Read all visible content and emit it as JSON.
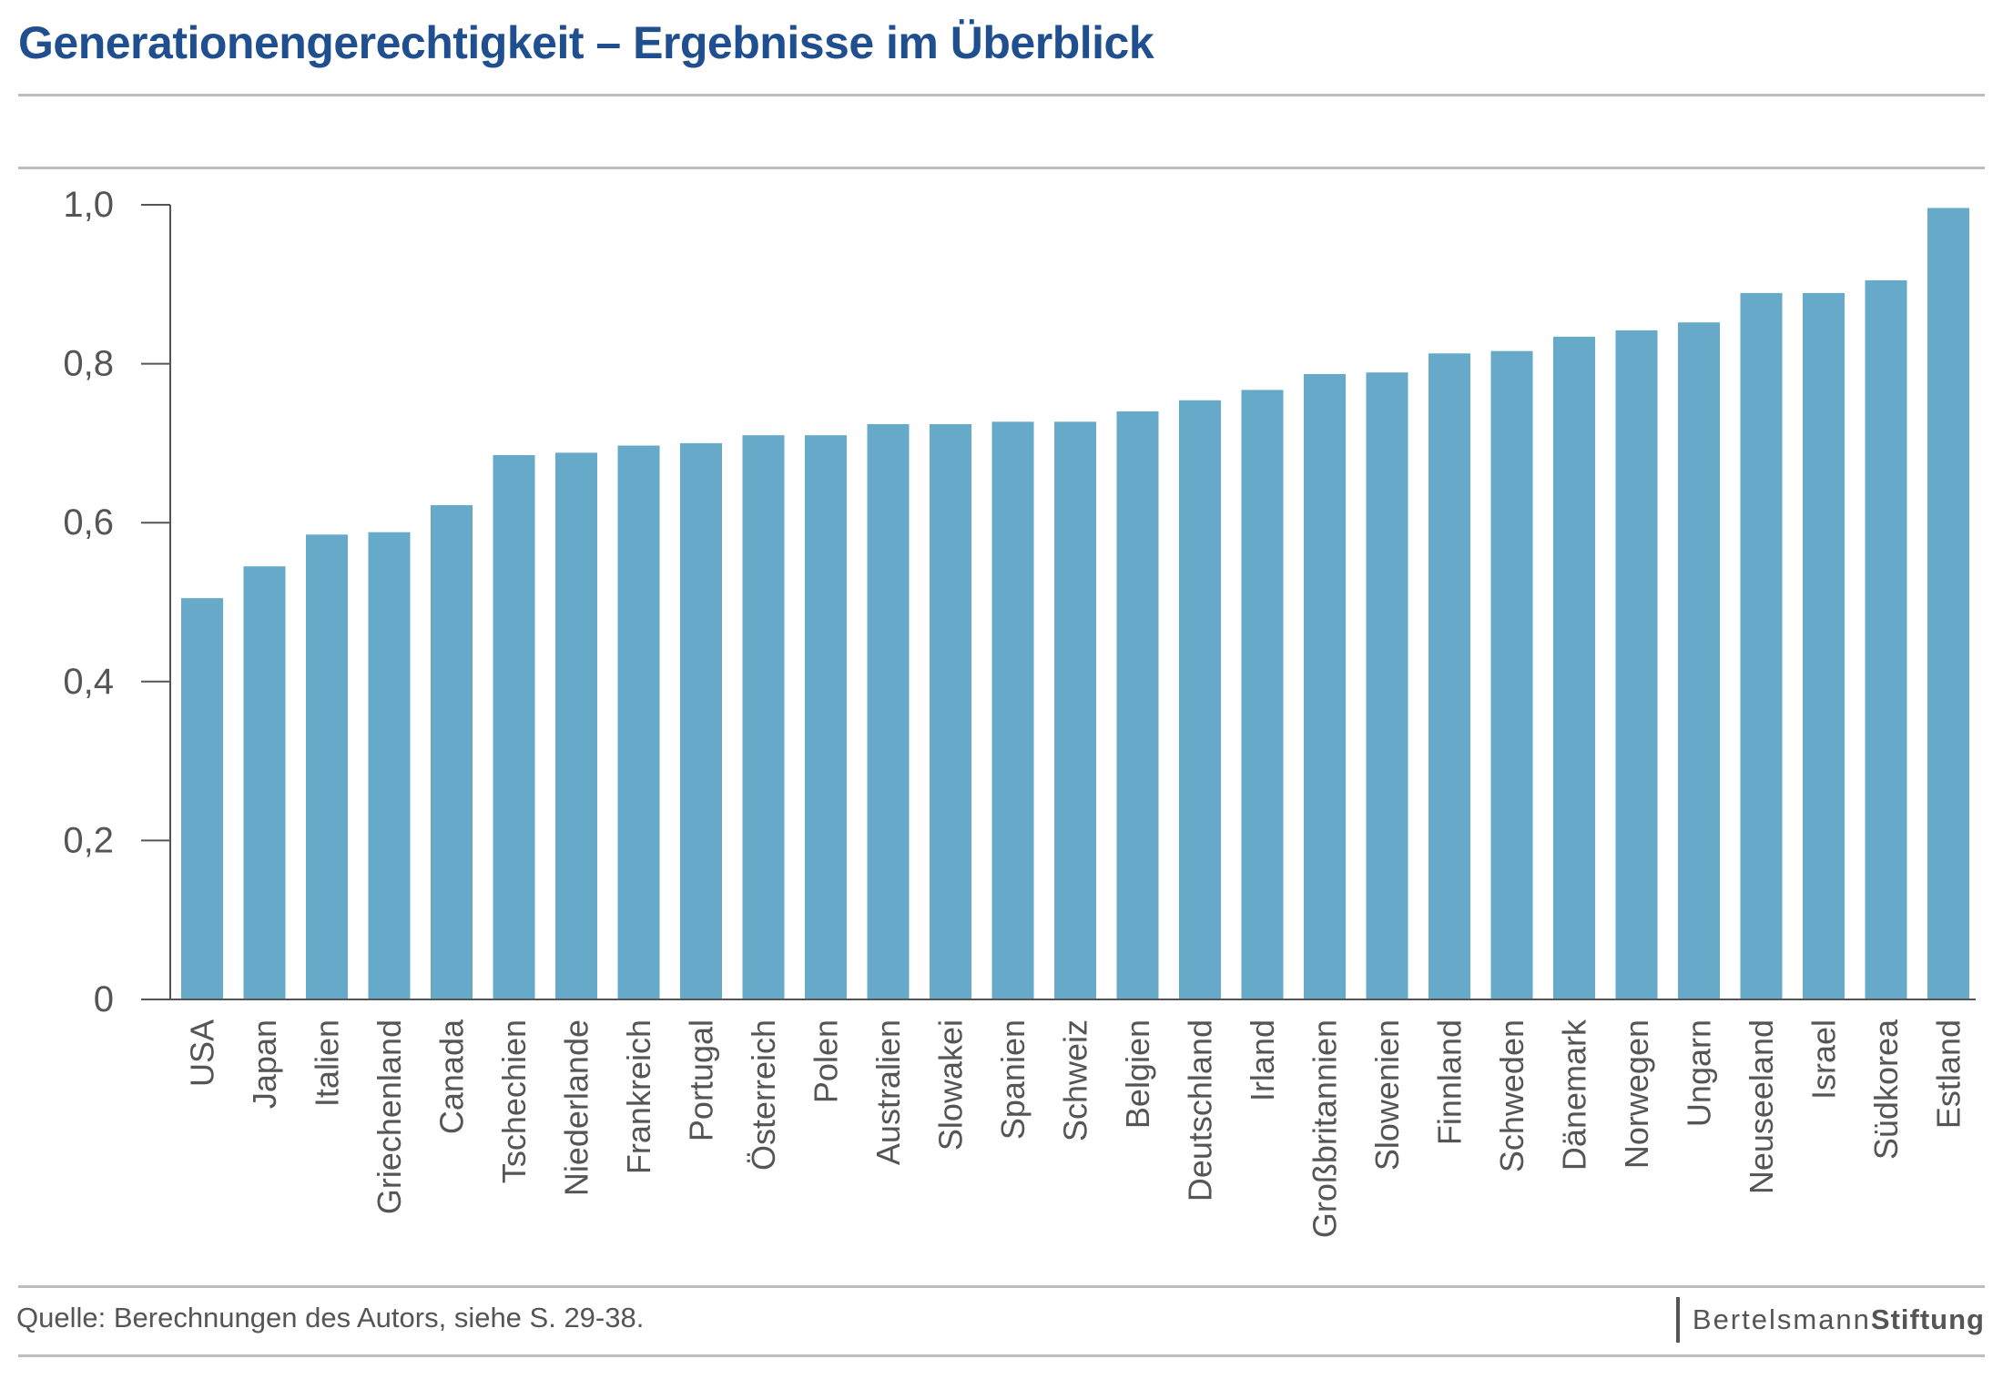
{
  "header": {
    "title": "Generationengerechtigkeit – Ergebnisse im Überblick"
  },
  "footer": {
    "source": "Quelle: Berechnungen des Autors, siehe S. 29-38.",
    "brand_light": "Bertelsmann",
    "brand_strong": "Stiftung"
  },
  "colors": {
    "bar": "#66a9c8",
    "title": "#1f4f8f",
    "axis": "#555555",
    "text": "#555555"
  },
  "chart_data": {
    "type": "bar",
    "categories": [
      "USA",
      "Japan",
      "Italien",
      "Griechenland",
      "Canada",
      "Tschechien",
      "Niederlande",
      "Frankreich",
      "Portugal",
      "Österreich",
      "Polen",
      "Australien",
      "Slowakei",
      "Spanien",
      "Schweiz",
      "Belgien",
      "Deutschland",
      "Irland",
      "Großbritannien",
      "Slowenien",
      "Finnland",
      "Schweden",
      "Dänemark",
      "Norwegen",
      "Ungarn",
      "Neuseeland",
      "Israel",
      "Südkorea",
      "Estland"
    ],
    "values": [
      0.505,
      0.545,
      0.585,
      0.588,
      0.622,
      0.685,
      0.688,
      0.697,
      0.7,
      0.71,
      0.71,
      0.724,
      0.724,
      0.727,
      0.727,
      0.74,
      0.754,
      0.767,
      0.787,
      0.789,
      0.813,
      0.816,
      0.834,
      0.842,
      0.852,
      0.889,
      0.889,
      0.905,
      0.996
    ],
    "ylim": [
      0,
      1.0
    ],
    "yticks": [
      0,
      0.2,
      0.4,
      0.6,
      0.8,
      1.0
    ],
    "ytick_labels": [
      "0",
      "0,2",
      "0,4",
      "0,6",
      "0,8",
      "1,0"
    ],
    "grid": false,
    "title": "Generationengerechtigkeit – Ergebnisse im Überblick",
    "xlabel": "",
    "ylabel": ""
  }
}
